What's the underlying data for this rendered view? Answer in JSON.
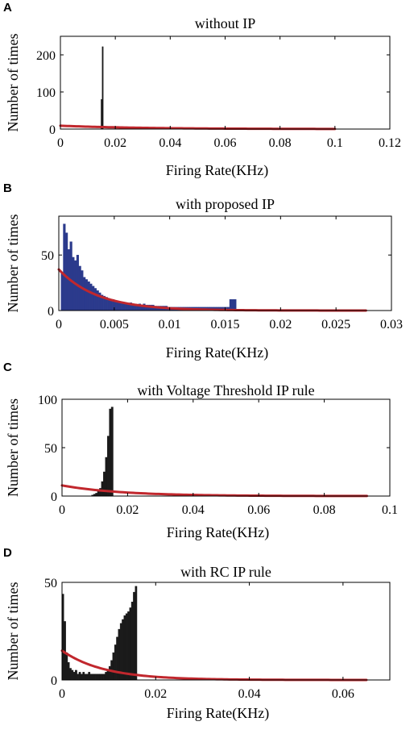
{
  "chart_data": [
    {
      "panel": "A",
      "type": "bar",
      "title": "without IP",
      "xlabel": "Firing Rate(KHz)",
      "ylabel": "Number of times",
      "xlim": [
        0,
        0.12
      ],
      "ylim": [
        0,
        250
      ],
      "xticks": [
        "0",
        "0.02",
        "0.04",
        "0.06",
        "0.08",
        "0.1",
        "0.12"
      ],
      "yticks": [
        "0",
        "100",
        "200"
      ],
      "bar_color": "#1a1a1a",
      "fit_color": "#c1272d",
      "bins": [
        [
          0.0148,
          0.0152,
          80
        ],
        [
          0.0152,
          0.0156,
          222
        ]
      ],
      "fit": {
        "y0": 9,
        "scale": 0.03,
        "xmax": 0.1
      }
    },
    {
      "panel": "B",
      "type": "bar",
      "title": "with proposed IP",
      "xlabel": "Firing Rate(KHz)",
      "ylabel": "Number of times",
      "xlim": [
        0,
        0.03
      ],
      "ylim": [
        0,
        85
      ],
      "xticks": [
        "0",
        "0.005",
        "0.01",
        "0.015",
        "0.02",
        "0.025",
        "0.03"
      ],
      "yticks": [
        "0",
        "50"
      ],
      "bar_color": "#2b3a8c",
      "fit_color": "#c1272d",
      "bins": [
        [
          0.0002,
          0.0004,
          34
        ],
        [
          0.0004,
          0.0006,
          78
        ],
        [
          0.0006,
          0.0008,
          70
        ],
        [
          0.0008,
          0.001,
          55
        ],
        [
          0.001,
          0.0012,
          62
        ],
        [
          0.0012,
          0.0014,
          48
        ],
        [
          0.0014,
          0.0016,
          45
        ],
        [
          0.0016,
          0.0018,
          50
        ],
        [
          0.0018,
          0.002,
          40
        ],
        [
          0.002,
          0.0022,
          36
        ],
        [
          0.0022,
          0.0024,
          30
        ],
        [
          0.0024,
          0.0026,
          28
        ],
        [
          0.0026,
          0.0028,
          26
        ],
        [
          0.0028,
          0.003,
          24
        ],
        [
          0.003,
          0.0032,
          22
        ],
        [
          0.0032,
          0.0034,
          20
        ],
        [
          0.0034,
          0.0036,
          18
        ],
        [
          0.0036,
          0.0038,
          16
        ],
        [
          0.0038,
          0.004,
          14
        ],
        [
          0.004,
          0.0042,
          13
        ],
        [
          0.0042,
          0.0044,
          12
        ],
        [
          0.0044,
          0.0046,
          11
        ],
        [
          0.0046,
          0.0048,
          10
        ],
        [
          0.0048,
          0.005,
          10
        ],
        [
          0.005,
          0.0052,
          9
        ],
        [
          0.0052,
          0.0054,
          8
        ],
        [
          0.0054,
          0.0056,
          8
        ],
        [
          0.0056,
          0.0058,
          7
        ],
        [
          0.0058,
          0.006,
          7
        ],
        [
          0.006,
          0.0062,
          6
        ],
        [
          0.0062,
          0.0064,
          6
        ],
        [
          0.0064,
          0.0066,
          7
        ],
        [
          0.0066,
          0.0068,
          6
        ],
        [
          0.0068,
          0.007,
          6
        ],
        [
          0.007,
          0.0072,
          5
        ],
        [
          0.0072,
          0.0074,
          6
        ],
        [
          0.0074,
          0.0076,
          5
        ],
        [
          0.0076,
          0.0078,
          6
        ],
        [
          0.0078,
          0.008,
          5
        ],
        [
          0.008,
          0.0082,
          5
        ],
        [
          0.0082,
          0.0084,
          5
        ],
        [
          0.0084,
          0.0086,
          5
        ],
        [
          0.0086,
          0.0088,
          4
        ],
        [
          0.0088,
          0.009,
          4
        ],
        [
          0.009,
          0.0092,
          4
        ],
        [
          0.0092,
          0.0094,
          4
        ],
        [
          0.0094,
          0.0096,
          4
        ],
        [
          0.0096,
          0.0098,
          4
        ],
        [
          0.0098,
          0.01,
          3
        ],
        [
          0.01,
          0.0102,
          3
        ],
        [
          0.0102,
          0.0104,
          3
        ],
        [
          0.0104,
          0.0106,
          3
        ],
        [
          0.0106,
          0.0108,
          3
        ],
        [
          0.0108,
          0.011,
          3
        ],
        [
          0.011,
          0.0112,
          3
        ],
        [
          0.0112,
          0.0114,
          3
        ],
        [
          0.0114,
          0.0116,
          3
        ],
        [
          0.0116,
          0.0118,
          3
        ],
        [
          0.0118,
          0.012,
          3
        ],
        [
          0.012,
          0.0122,
          3
        ],
        [
          0.0122,
          0.0124,
          3
        ],
        [
          0.0124,
          0.0126,
          3
        ],
        [
          0.0126,
          0.0128,
          3
        ],
        [
          0.0128,
          0.013,
          3
        ],
        [
          0.013,
          0.0132,
          3
        ],
        [
          0.0132,
          0.0134,
          3
        ],
        [
          0.0134,
          0.0136,
          3
        ],
        [
          0.0136,
          0.0138,
          3
        ],
        [
          0.0138,
          0.014,
          3
        ],
        [
          0.014,
          0.0142,
          3
        ],
        [
          0.0142,
          0.0144,
          3
        ],
        [
          0.0144,
          0.0146,
          3
        ],
        [
          0.0146,
          0.0148,
          3
        ],
        [
          0.0148,
          0.015,
          3
        ],
        [
          0.015,
          0.0152,
          3
        ],
        [
          0.0152,
          0.0154,
          3
        ],
        [
          0.0154,
          0.0156,
          10
        ],
        [
          0.0156,
          0.0158,
          10
        ],
        [
          0.0158,
          0.016,
          10
        ]
      ],
      "fit": {
        "y0": 37,
        "scale": 0.0035,
        "xmax": 0.0277
      }
    },
    {
      "panel": "C",
      "type": "bar",
      "title": "with Voltage Threshold IP rule",
      "xlabel": "Firing Rate(KHz)",
      "ylabel": "Number of times",
      "xlim": [
        0,
        0.1
      ],
      "ylim": [
        0,
        100
      ],
      "xticks": [
        "0",
        "0.02",
        "0.04",
        "0.06",
        "0.08",
        "0.1"
      ],
      "yticks": [
        "0",
        "50",
        "100"
      ],
      "bar_color": "#1a1a1a",
      "fit_color": "#c1272d",
      "bins": [
        [
          0.009,
          0.0096,
          1
        ],
        [
          0.0096,
          0.0102,
          2
        ],
        [
          0.0102,
          0.0108,
          3
        ],
        [
          0.0108,
          0.0114,
          5
        ],
        [
          0.0114,
          0.012,
          8
        ],
        [
          0.012,
          0.0126,
          15
        ],
        [
          0.0126,
          0.0132,
          25
        ],
        [
          0.0132,
          0.0138,
          40
        ],
        [
          0.0138,
          0.0144,
          62
        ],
        [
          0.0144,
          0.015,
          90
        ],
        [
          0.015,
          0.0156,
          92
        ]
      ],
      "fit": {
        "y0": 11,
        "scale": 0.018,
        "xmax": 0.093
      }
    },
    {
      "panel": "D",
      "type": "bar",
      "title": "with RC IP rule",
      "xlabel": "Firing Rate(KHz)",
      "ylabel": "Number of times",
      "xlim": [
        0,
        0.07
      ],
      "ylim": [
        0,
        50
      ],
      "xticks": [
        "0",
        "0.02",
        "0.04",
        "0.06"
      ],
      "yticks": [
        "0",
        "50"
      ],
      "bar_color": "#1a1a1a",
      "fit_color": "#c1272d",
      "bins": [
        [
          0.0,
          0.0004,
          44
        ],
        [
          0.0004,
          0.0008,
          30
        ],
        [
          0.0008,
          0.0012,
          14
        ],
        [
          0.0012,
          0.0016,
          9
        ],
        [
          0.0016,
          0.002,
          6
        ],
        [
          0.002,
          0.0024,
          5
        ],
        [
          0.0024,
          0.0028,
          4
        ],
        [
          0.0028,
          0.0032,
          5
        ],
        [
          0.0032,
          0.0036,
          3
        ],
        [
          0.0036,
          0.004,
          4
        ],
        [
          0.004,
          0.0044,
          3
        ],
        [
          0.0044,
          0.0048,
          4
        ],
        [
          0.0048,
          0.0052,
          3
        ],
        [
          0.0052,
          0.0056,
          3
        ],
        [
          0.0056,
          0.006,
          4
        ],
        [
          0.006,
          0.0064,
          3
        ],
        [
          0.0064,
          0.0068,
          3
        ],
        [
          0.0068,
          0.0072,
          3
        ],
        [
          0.0072,
          0.0076,
          3
        ],
        [
          0.0076,
          0.008,
          3
        ],
        [
          0.008,
          0.0084,
          3
        ],
        [
          0.0084,
          0.0088,
          3
        ],
        [
          0.0088,
          0.0092,
          3
        ],
        [
          0.0092,
          0.0096,
          4
        ],
        [
          0.0096,
          0.01,
          5
        ],
        [
          0.01,
          0.0104,
          7
        ],
        [
          0.0104,
          0.0108,
          10
        ],
        [
          0.0108,
          0.0112,
          14
        ],
        [
          0.0112,
          0.0116,
          18
        ],
        [
          0.0116,
          0.012,
          22
        ],
        [
          0.012,
          0.0124,
          26
        ],
        [
          0.0124,
          0.0128,
          29
        ],
        [
          0.0128,
          0.0132,
          31
        ],
        [
          0.0132,
          0.0136,
          33
        ],
        [
          0.0136,
          0.014,
          34
        ],
        [
          0.014,
          0.0144,
          35
        ],
        [
          0.0144,
          0.0148,
          37
        ],
        [
          0.0148,
          0.0152,
          40
        ],
        [
          0.0152,
          0.0156,
          45
        ],
        [
          0.0156,
          0.016,
          48
        ]
      ],
      "fit": {
        "y0": 15,
        "scale": 0.009,
        "xmax": 0.065
      }
    }
  ]
}
